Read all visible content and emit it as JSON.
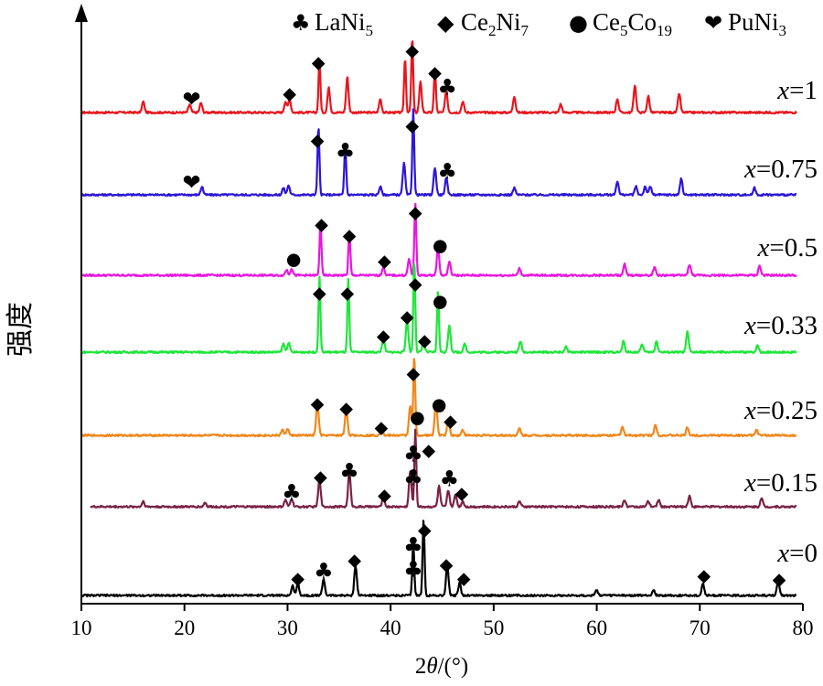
{
  "chart_data": {
    "type": "line",
    "xlabel_parts": [
      "2",
      "θ",
      "/(°)"
    ],
    "ylabel": "强度",
    "xlim": [
      10,
      80
    ],
    "xticks": [
      10,
      20,
      30,
      40,
      50,
      60,
      70,
      80
    ],
    "grid": false,
    "legend_position": "top",
    "legend": [
      {
        "symbol": "♣",
        "base": "LaNi",
        "sub": "5",
        "tail": "",
        "tail_sub": ""
      },
      {
        "symbol": "◆",
        "base": "Ce",
        "sub": "2",
        "tail": "Ni",
        "tail_sub": "7"
      },
      {
        "symbol": "●",
        "base": "Ce",
        "sub": "5",
        "tail": "Co",
        "tail_sub": "19"
      },
      {
        "symbol": "❤",
        "base": "PuNi",
        "sub": "3",
        "tail": "",
        "tail_sub": ""
      }
    ],
    "series": [
      {
        "name": "x=1",
        "var": "x",
        "label_value": "=1",
        "color": "#e8161e",
        "peaks": [
          [
            16,
            8
          ],
          [
            20.5,
            6
          ],
          [
            21.6,
            7
          ],
          [
            29.8,
            8
          ],
          [
            30.2,
            10
          ],
          [
            33.1,
            38
          ],
          [
            34,
            18
          ],
          [
            35.8,
            26
          ],
          [
            39,
            10
          ],
          [
            41.4,
            40
          ],
          [
            42.1,
            55
          ],
          [
            42.9,
            22
          ],
          [
            44.3,
            32
          ],
          [
            45.4,
            16
          ],
          [
            47,
            8
          ],
          [
            52,
            12
          ],
          [
            56.5,
            6
          ],
          [
            62,
            10
          ],
          [
            63.7,
            20
          ],
          [
            65,
            12
          ],
          [
            68,
            14
          ]
        ],
        "markers": [
          [
            "❤",
            20.7,
            108
          ],
          [
            "◆",
            30.2,
            102
          ],
          [
            "◆",
            33,
            68
          ],
          [
            "◆",
            42.1,
            55
          ],
          [
            "◆",
            44.3,
            79
          ],
          [
            "♣",
            45.5,
            95
          ]
        ]
      },
      {
        "name": "x=0.75",
        "var": "x",
        "label_value": "=0.75",
        "color": "#2d16d6",
        "peaks": [
          [
            21.7,
            6
          ],
          [
            29.6,
            5
          ],
          [
            30.1,
            7
          ],
          [
            33,
            50
          ],
          [
            35.6,
            36
          ],
          [
            39,
            6
          ],
          [
            41.3,
            23
          ],
          [
            42.2,
            63
          ],
          [
            44.3,
            20
          ],
          [
            45.4,
            12
          ],
          [
            52,
            5
          ],
          [
            62,
            10
          ],
          [
            63.8,
            6
          ],
          [
            64.7,
            6
          ],
          [
            65.2,
            6
          ],
          [
            68.2,
            12
          ],
          [
            75.3,
            5
          ]
        ],
        "markers": [
          [
            "❤",
            20.7,
            199
          ],
          [
            "◆",
            32.9,
            153
          ],
          [
            "♣",
            35.6,
            165
          ],
          [
            "◆",
            42.1,
            137
          ],
          [
            "♣",
            45.5,
            187
          ]
        ]
      },
      {
        "name": "x=0.5",
        "var": "x",
        "label_value": "=0.5",
        "color": "#e816e0",
        "peaks": [
          [
            29.9,
            4
          ],
          [
            30.4,
            5
          ],
          [
            33.2,
            40
          ],
          [
            36,
            32
          ],
          [
            39.3,
            6
          ],
          [
            41.8,
            12
          ],
          [
            42.4,
            52
          ],
          [
            44.6,
            20
          ],
          [
            45.7,
            10
          ],
          [
            52.5,
            5
          ],
          [
            62.7,
            8
          ],
          [
            65.6,
            6
          ],
          [
            69,
            8
          ],
          [
            75.8,
            7
          ]
        ],
        "markers": [
          [
            "●",
            30.6,
            283
          ],
          [
            "◆",
            33.3,
            245
          ],
          [
            "◆",
            36,
            257
          ],
          [
            "◆",
            39.4,
            285
          ],
          [
            "◆",
            42.4,
            232
          ],
          [
            "●",
            44.8,
            268
          ]
        ]
      },
      {
        "name": "x=0.33",
        "var": "x",
        "label_value": "=0.33",
        "color": "#1ee63a",
        "peaks": [
          [
            29.6,
            6
          ],
          [
            30.1,
            7
          ],
          [
            33.1,
            55
          ],
          [
            35.9,
            53
          ],
          [
            39.3,
            10
          ],
          [
            41.6,
            25
          ],
          [
            42.3,
            68
          ],
          [
            43.2,
            8
          ],
          [
            44.6,
            45
          ],
          [
            45.7,
            20
          ],
          [
            47.2,
            6
          ],
          [
            52.6,
            8
          ],
          [
            57,
            4
          ],
          [
            62.6,
            8
          ],
          [
            64.4,
            6
          ],
          [
            65.8,
            8
          ],
          [
            68.8,
            15
          ],
          [
            75.6,
            5
          ]
        ],
        "markers": [
          [
            "◆",
            33.1,
            320
          ],
          [
            "◆",
            35.8,
            320
          ],
          [
            "◆",
            39.3,
            367
          ],
          [
            "◆",
            41.6,
            346
          ],
          [
            "◆",
            42.4,
            310
          ],
          [
            "◆",
            43.3,
            372
          ],
          [
            "●",
            44.8,
            329
          ]
        ]
      },
      {
        "name": "x=0.25",
        "var": "x",
        "label_value": "=0.25",
        "color": "#f0871a",
        "peaks": [
          [
            29.5,
            4
          ],
          [
            30,
            5
          ],
          [
            32.9,
            24
          ],
          [
            35.7,
            20
          ],
          [
            39.1,
            6
          ],
          [
            41.9,
            22
          ],
          [
            42.3,
            58
          ],
          [
            44.4,
            25
          ],
          [
            45.6,
            12
          ],
          [
            47,
            4
          ],
          [
            52.5,
            5
          ],
          [
            62.5,
            6
          ],
          [
            65.7,
            8
          ],
          [
            68.8,
            6
          ],
          [
            75.5,
            4
          ]
        ],
        "markers": [
          [
            "◆",
            32.9,
            441
          ],
          [
            "◆",
            35.7,
            446
          ],
          [
            "◆",
            39.1,
            467
          ],
          [
            "◆",
            42.2,
            408
          ],
          [
            "●",
            42.6,
            456
          ],
          [
            "●",
            44.7,
            442
          ],
          [
            "◆",
            45.8,
            460
          ]
        ]
      },
      {
        "name": "x=0.15",
        "var": "x",
        "label_value": "=0.15",
        "color": "#7a2246",
        "peaks": [
          [
            16,
            4
          ],
          [
            22,
            3
          ],
          [
            29.8,
            5
          ],
          [
            30.4,
            6
          ],
          [
            33.1,
            20
          ],
          [
            36,
            25
          ],
          [
            39.3,
            7
          ],
          [
            41.9,
            26
          ],
          [
            42.4,
            56
          ],
          [
            44.7,
            15
          ],
          [
            45.6,
            12
          ],
          [
            46.3,
            9
          ],
          [
            47,
            4
          ],
          [
            52.5,
            4
          ],
          [
            62.7,
            5
          ],
          [
            65,
            4
          ],
          [
            66,
            5
          ],
          [
            69,
            8
          ],
          [
            76,
            6
          ]
        ],
        "markers": [
          [
            "♣",
            30.4,
            538
          ],
          [
            "◆",
            33.2,
            521
          ],
          [
            "♣",
            36,
            515
          ],
          [
            "◆",
            39.4,
            541
          ],
          [
            "♣",
            42.2,
            496
          ],
          [
            "♣",
            42.2,
            522
          ],
          [
            "◆",
            43.7,
            492
          ],
          [
            "♣",
            45.7,
            523
          ],
          [
            "◆",
            46.9,
            539
          ]
        ]
      },
      {
        "name": "x=0",
        "var": "x",
        "label_value": "=0",
        "color": "#000000",
        "peaks": [
          [
            30.5,
            7
          ],
          [
            31,
            9
          ],
          [
            33.5,
            12
          ],
          [
            36.6,
            22
          ],
          [
            42.2,
            40
          ],
          [
            43.2,
            56
          ],
          [
            45.5,
            22
          ],
          [
            46.7,
            9
          ],
          [
            60,
            4
          ],
          [
            65.5,
            4
          ],
          [
            70.3,
            9
          ],
          [
            77.6,
            10
          ]
        ],
        "markers": [
          [
            "◆",
            31,
            632
          ],
          [
            "♣",
            33.5,
            624
          ],
          [
            "◆",
            36.5,
            612
          ],
          [
            "♣",
            42.2,
            596
          ],
          [
            "♣",
            42.2,
            622
          ],
          [
            "◆",
            43.3,
            579
          ],
          [
            "◆",
            45.4,
            617
          ],
          [
            "◆",
            47.1,
            632
          ],
          [
            "◆",
            70.4,
            629
          ],
          [
            "◆",
            77.7,
            633
          ]
        ]
      }
    ]
  }
}
